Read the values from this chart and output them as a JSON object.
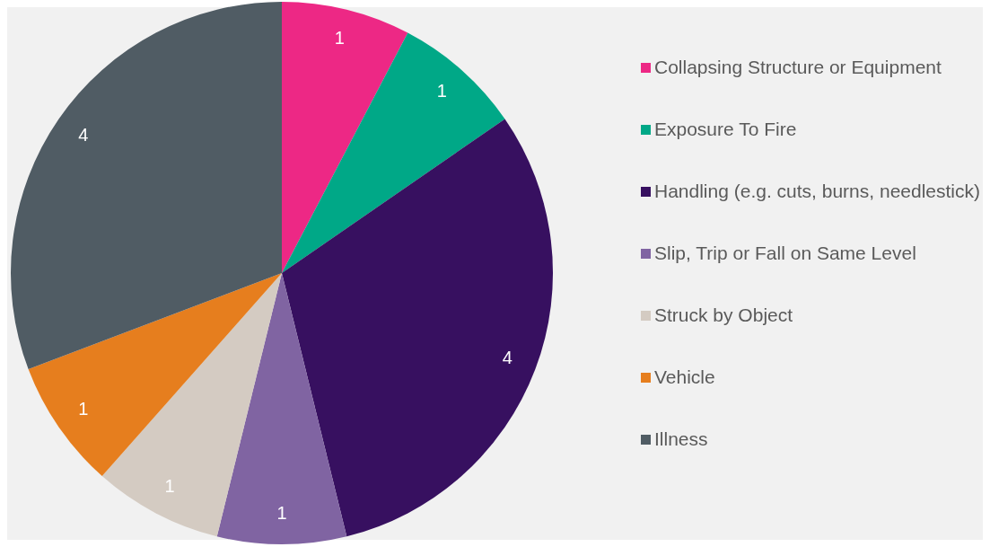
{
  "chart_data": {
    "type": "pie",
    "categories": [
      "Collapsing Structure or Equipment",
      "Exposure To Fire",
      "Handling (e.g. cuts, burns, needlestick)",
      "Slip, Trip or Fall on Same Level",
      "Struck by Object",
      "Vehicle",
      "Illness"
    ],
    "values": [
      1,
      1,
      4,
      1,
      1,
      1,
      4
    ],
    "colors": [
      "#ed2885",
      "#00a887",
      "#371060",
      "#8064a2",
      "#d4cbc2",
      "#e67e1e",
      "#505c64"
    ],
    "data_labels": true,
    "legend": "right"
  }
}
